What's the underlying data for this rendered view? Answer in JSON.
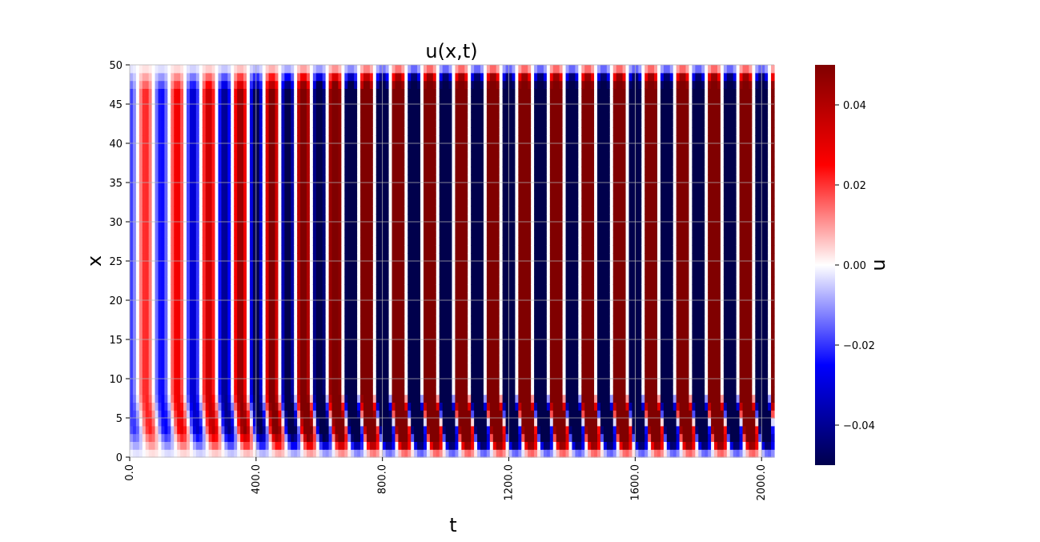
{
  "chart_data": {
    "type": "heatmap",
    "title": "u(x,t)",
    "xlabel": "t",
    "ylabel": "x",
    "xlim": [
      0,
      2040
    ],
    "ylim": [
      0,
      50
    ],
    "x_ticks": [
      0,
      400,
      800,
      1200,
      1600,
      2000
    ],
    "x_tick_labels": [
      "0.0",
      "400.0",
      "800.0",
      "1200.0",
      "1600.0",
      "2000.0"
    ],
    "y_ticks": [
      0,
      5,
      10,
      15,
      20,
      25,
      30,
      35,
      40,
      45,
      50
    ],
    "y_tick_labels": [
      "0",
      "5",
      "10",
      "15",
      "20",
      "25",
      "30",
      "35",
      "40",
      "45",
      "50"
    ],
    "grid": true,
    "colormap": "seismic",
    "colormap_colors": [
      "#00004c",
      "#0000ff",
      "#ffffff",
      "#ff0000",
      "#800000"
    ],
    "colorbar": {
      "label": "u",
      "range": [
        -0.05,
        0.05
      ],
      "ticks": [
        -0.04,
        -0.02,
        0.0,
        0.02,
        0.04
      ],
      "tick_labels": [
        "−0.04",
        "−0.02",
        "0.00",
        "0.02",
        "0.04"
      ]
    },
    "field_description": {
      "oscillation_period_t": 100,
      "saturation_amplitude": 0.05,
      "saturates_near_t": 900,
      "profile_in_x": "uniform in the interior, fading to zero at x=0 and x=50",
      "t_cells": 204,
      "x_cells": 50
    }
  }
}
